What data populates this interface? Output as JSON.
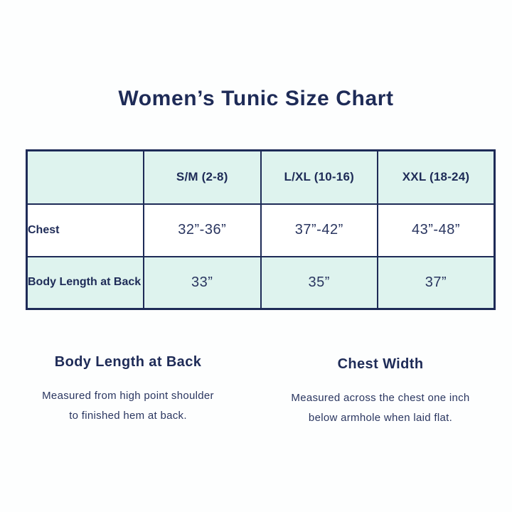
{
  "colors": {
    "navy": "#1e2b57",
    "mint": "#def3ee",
    "white": "#ffffff"
  },
  "chart_data": {
    "type": "table",
    "title": "Women’s Tunic Size Chart",
    "columns": [
      "",
      "S/M (2-8)",
      "L/XL (10-16)",
      "XXL (18-24)"
    ],
    "rows": [
      {
        "label": "Chest",
        "values": [
          "32”-36”",
          "37”-42”",
          "43”-48”"
        ]
      },
      {
        "label": "Body Length at Back",
        "values": [
          "33”",
          "35”",
          "37”"
        ]
      }
    ]
  },
  "notes": {
    "left": {
      "heading": "Body Length at Back",
      "lines": [
        "Measured from high point shoulder",
        "to finished hem at back."
      ]
    },
    "right": {
      "heading": "Chest Width",
      "lines": [
        "Measured across the chest one inch",
        "below armhole when laid flat."
      ]
    }
  }
}
